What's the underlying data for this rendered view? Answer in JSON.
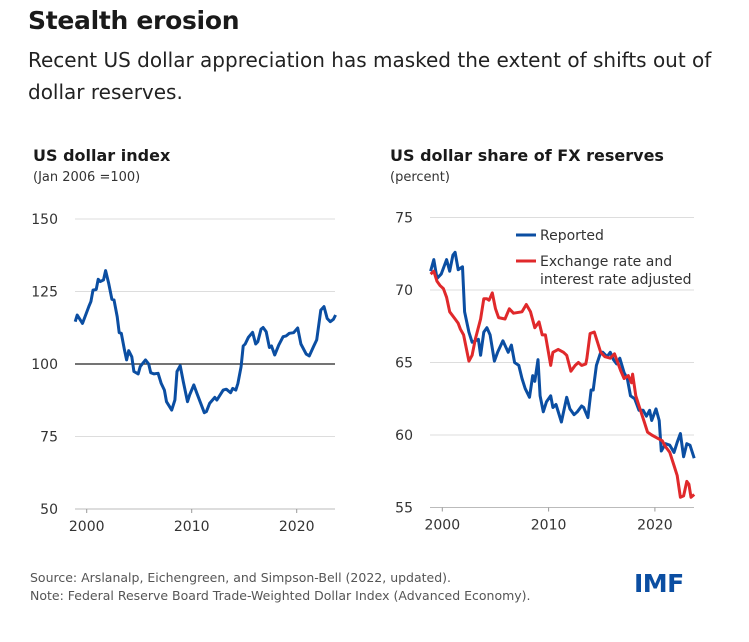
{
  "header": {
    "title": "Stealth erosion",
    "subtitle": "Recent US dollar appreciation has masked the extent of shifts out of dollar reserves."
  },
  "footer": {
    "source": "Source: Arslanalp, Eichengreen, and Simpson-Bell (2022, updated).",
    "note": "Note: Federal Reserve Board Trade-Weighted Dollar Index (Advanced Economy).",
    "logo": "IMF"
  },
  "colors": {
    "blue": "#0b4ea2",
    "red": "#e0292b",
    "grid": "#dddddd",
    "baseline": "#222222"
  },
  "chart_data": [
    {
      "type": "line",
      "title": "US dollar index",
      "subtitle": "(Jan 2006 =100)",
      "xlim": [
        1998.9,
        2023.8
      ],
      "ylim": [
        50,
        150
      ],
      "xticks": [
        2000,
        2010,
        2020
      ],
      "yticks": [
        50,
        75,
        100,
        125,
        150
      ],
      "grid": true,
      "reference_line": 100,
      "series": [
        {
          "color": "#0b4ea2",
          "x": [
            1998.9,
            1999.1,
            1999.6,
            2000.2,
            2000.4,
            2000.6,
            2000.9,
            2001.1,
            2001.3,
            2001.6,
            2001.8,
            2002.1,
            2002.4,
            2002.6,
            2002.9,
            2003.1,
            2003.3,
            2003.6,
            2003.8,
            2004.0,
            2004.3,
            2004.5,
            2004.9,
            2005.1,
            2005.6,
            2005.9,
            2006.1,
            2006.4,
            2006.8,
            2007.1,
            2007.4,
            2007.6,
            2008.1,
            2008.4,
            2008.6,
            2008.9,
            2009.2,
            2009.6,
            2009.8,
            2010.2,
            2010.5,
            2010.8,
            2011.2,
            2011.4,
            2011.7,
            2012.2,
            2012.4,
            2013.0,
            2013.3,
            2013.7,
            2013.9,
            2014.2,
            2014.4,
            2014.7,
            2014.9,
            2015.1,
            2015.4,
            2015.8,
            2016.1,
            2016.3,
            2016.6,
            2016.8,
            2017.1,
            2017.4,
            2017.6,
            2017.9,
            2018.3,
            2018.7,
            2019.0,
            2019.3,
            2019.7,
            2020.1,
            2020.4,
            2020.9,
            2021.2,
            2021.6,
            2021.9,
            2022.3,
            2022.6,
            2022.9,
            2023.2,
            2023.5,
            2023.7
          ],
          "y": [
            114.6,
            116.9,
            114,
            119.8,
            121.5,
            125.5,
            125.7,
            129.2,
            128.4,
            129,
            132.2,
            127.8,
            122.3,
            122.1,
            116.3,
            110.8,
            110.6,
            104.8,
            101.4,
            104.6,
            102.5,
            97.4,
            96.6,
            99.1,
            101.4,
            100,
            97,
            96.6,
            96.8,
            93.3,
            91,
            87,
            84.1,
            87.6,
            97.4,
            99.4,
            93.9,
            87,
            89.3,
            92.8,
            89.9,
            87,
            83.2,
            83.6,
            86.4,
            88.5,
            87.6,
            91,
            91.3,
            90.1,
            91.6,
            91,
            93.3,
            99.1,
            106.2,
            106.9,
            109.2,
            110.9,
            106.9,
            107.7,
            112,
            112.6,
            111.1,
            105.7,
            106.2,
            103.1,
            106.6,
            109.4,
            109.7,
            110.6,
            110.8,
            112.4,
            106.9,
            103.4,
            102.8,
            106,
            108.3,
            118.6,
            119.8,
            115.7,
            114.6,
            115.4,
            116.9
          ]
        }
      ]
    },
    {
      "type": "line",
      "title": "US dollar share of FX reserves",
      "subtitle": "(percent)",
      "xlim": [
        1998.9,
        2023.8
      ],
      "ylim": [
        55,
        75
      ],
      "xticks": [
        2000,
        2010,
        2020
      ],
      "yticks": [
        55,
        60,
        65,
        70,
        75
      ],
      "grid": true,
      "legend": "top-right",
      "series": [
        {
          "name": "Reported",
          "color": "#0b4ea2",
          "x": [
            1998.9,
            1999.2,
            1999.5,
            1999.9,
            2000.4,
            2000.7,
            2001.0,
            2001.2,
            2001.5,
            2001.9,
            2002.1,
            2002.5,
            2002.8,
            2003.1,
            2003.4,
            2003.6,
            2003.9,
            2004.2,
            2004.5,
            2004.9,
            2005.2,
            2005.7,
            2006.2,
            2006.5,
            2006.8,
            2007.2,
            2007.5,
            2007.8,
            2008.2,
            2008.5,
            2008.7,
            2009.0,
            2009.2,
            2009.5,
            2009.8,
            2010.2,
            2010.4,
            2010.7,
            2011.2,
            2011.7,
            2012.0,
            2012.4,
            2012.7,
            2013.1,
            2013.3,
            2013.7,
            2014.0,
            2014.2,
            2014.5,
            2014.9,
            2015.1,
            2015.5,
            2015.8,
            2016.1,
            2016.4,
            2016.7,
            2017.1,
            2017.4,
            2017.7,
            2018.1,
            2018.5,
            2018.9,
            2019.2,
            2019.5,
            2019.7,
            2020.1,
            2020.4,
            2020.6,
            2021.0,
            2021.4,
            2021.8,
            2022.1,
            2022.4,
            2022.7,
            2023.0,
            2023.3,
            2023.7
          ],
          "y": [
            71.3,
            72.1,
            70.8,
            71.1,
            72.1,
            71.3,
            72.4,
            72.6,
            71.4,
            71.6,
            68.5,
            67.1,
            66.4,
            66.5,
            66.6,
            65.5,
            67.1,
            67.4,
            66.9,
            65.1,
            65.7,
            66.5,
            65.7,
            66.2,
            65,
            64.8,
            63.9,
            63.2,
            62.6,
            64.1,
            63.7,
            65.2,
            62.7,
            61.6,
            62.3,
            62.7,
            61.9,
            62.1,
            60.9,
            62.6,
            61.8,
            61.4,
            61.6,
            62,
            61.9,
            61.2,
            63.1,
            63.1,
            64.8,
            65.7,
            65.7,
            65.4,
            65.7,
            65.2,
            64.9,
            65.3,
            64.3,
            63.9,
            62.7,
            62.5,
            61.7,
            61.7,
            61.3,
            61.7,
            61,
            61.8,
            61,
            58.9,
            59.4,
            59.3,
            58.8,
            59.5,
            60.1,
            58.5,
            59.4,
            59.3,
            58.4
          ]
        },
        {
          "name": "Exchange rate and interest rate adjusted",
          "color": "#e0292b",
          "x": [
            1998.9,
            1999.2,
            1999.5,
            1999.8,
            2000.1,
            2000.4,
            2000.7,
            2001.2,
            2001.5,
            2001.7,
            2002.0,
            2002.5,
            2002.8,
            2003.1,
            2003.6,
            2003.9,
            2004.2,
            2004.4,
            2004.7,
            2005.0,
            2005.3,
            2005.9,
            2006.3,
            2006.7,
            2007.5,
            2007.9,
            2008.3,
            2008.7,
            2009.1,
            2009.4,
            2009.7,
            2010.2,
            2010.4,
            2010.9,
            2011.4,
            2011.7,
            2012.1,
            2012.5,
            2012.8,
            2013.1,
            2013.5,
            2013.6,
            2013.9,
            2014.3,
            2014.6,
            2014.9,
            2015.3,
            2015.8,
            2016.2,
            2016.5,
            2016.8,
            2017.1,
            2017.5,
            2017.8,
            2017.9,
            2018.2,
            2018.6,
            2019.0,
            2019.3,
            2019.7,
            2020.2,
            2020.7,
            2021.0,
            2021.4,
            2021.8,
            2022.1,
            2022.4,
            2022.7,
            2023.0,
            2023.2,
            2023.4,
            2023.7
          ],
          "y": [
            71.1,
            71.3,
            70.6,
            70.3,
            70.1,
            69.5,
            68.5,
            68,
            67.7,
            67.3,
            66.9,
            65.1,
            65.5,
            66.6,
            68,
            69.4,
            69.4,
            69.3,
            69.8,
            68.7,
            68.1,
            68,
            68.7,
            68.4,
            68.5,
            69,
            68.5,
            67.4,
            67.8,
            66.9,
            66.9,
            64.8,
            65.7,
            65.9,
            65.7,
            65.5,
            64.4,
            64.8,
            65,
            64.8,
            64.9,
            65.3,
            67,
            67.1,
            66.4,
            65.7,
            65.4,
            65.3,
            65.6,
            65,
            64.4,
            63.9,
            64.1,
            63.6,
            64.2,
            62.7,
            61.8,
            60.9,
            60.2,
            60,
            59.8,
            59.6,
            59.2,
            58.8,
            57.9,
            57.2,
            55.7,
            55.8,
            56.8,
            56.6,
            55.7,
            55.9
          ]
        }
      ]
    }
  ]
}
